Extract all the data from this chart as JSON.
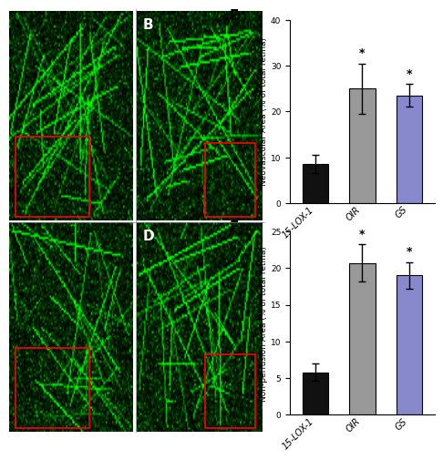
{
  "panel_E": {
    "label": "E",
    "categories": [
      "15-LOX-1",
      "OIR",
      "GS"
    ],
    "values": [
      8.5,
      25.0,
      23.5
    ],
    "errors": [
      2.0,
      5.5,
      2.5
    ],
    "colors": [
      "#111111",
      "#999999",
      "#8888cc"
    ],
    "ylabel": "Neovascular Area (% of total retina)",
    "ylim": [
      0,
      40
    ],
    "yticks": [
      0,
      10,
      20,
      30,
      40
    ],
    "sig_labels": [
      "",
      "*",
      "*"
    ]
  },
  "panel_F": {
    "label": "F",
    "categories": [
      "15-LOX-1",
      "OIR",
      "GS"
    ],
    "values": [
      5.8,
      20.7,
      19.0
    ],
    "errors": [
      1.2,
      2.5,
      1.8
    ],
    "colors": [
      "#111111",
      "#999999",
      "#8888cc"
    ],
    "ylabel": "Non-perfusion Area (% of total retina)",
    "ylim": [
      0,
      25
    ],
    "yticks": [
      0,
      5,
      10,
      15,
      20,
      25
    ],
    "sig_labels": [
      "",
      "*",
      "*"
    ]
  },
  "background_color": "#ffffff",
  "bar_width": 0.55,
  "label_fontsize": 7,
  "tick_fontsize": 6.5,
  "panel_label_fontsize": 11,
  "img_bg": "#000000",
  "img_green_low": "#001a00",
  "img_green_high": "#00cc00"
}
